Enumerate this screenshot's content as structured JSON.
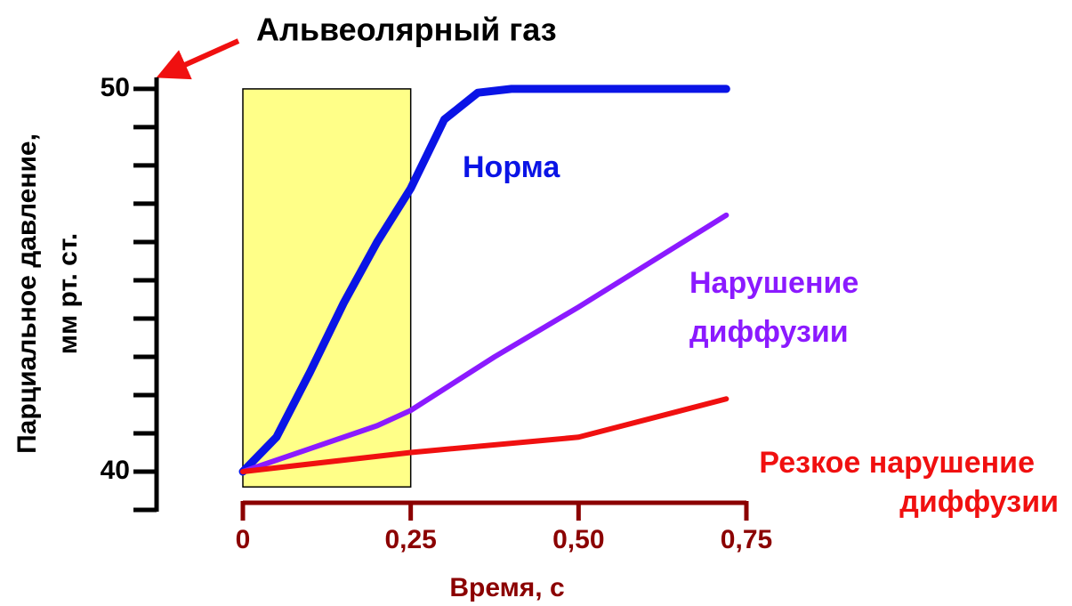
{
  "chart_data": {
    "type": "line",
    "title": "Альвеолярный газ",
    "xlabel": "Время, с",
    "ylabel": [
      "Парциальное давление,",
      "мм рт. ст."
    ],
    "xlim": [
      0,
      0.75
    ],
    "ylim": [
      39,
      50.3
    ],
    "xticks": [
      0,
      {
        "value": 0.25,
        "label": "0,25"
      },
      {
        "value": 0.5,
        "label": "0,50"
      },
      {
        "value": 0.75,
        "label": "0,75"
      }
    ],
    "yticks": [
      40,
      50
    ],
    "minor_yticks": [
      39,
      41,
      42,
      43,
      44,
      45,
      46,
      47,
      48,
      49
    ],
    "shaded_region": {
      "x": [
        0,
        0.25
      ],
      "y": [
        39.6,
        50
      ],
      "color": "#ffff88"
    },
    "series": [
      {
        "name": "Норма",
        "color": "#0a14e6",
        "x": [
          0,
          0.05,
          0.1,
          0.15,
          0.2,
          0.25,
          0.3,
          0.35,
          0.4,
          0.72
        ],
        "values": [
          40,
          40.9,
          42.6,
          44.4,
          46.0,
          47.4,
          49.2,
          49.9,
          50,
          50
        ]
      },
      {
        "name": "Нарушение диффузии",
        "color": "#8b1aff",
        "x": [
          0,
          0.1,
          0.2,
          0.25,
          0.375,
          0.5,
          0.72
        ],
        "values": [
          40,
          40.6,
          41.2,
          41.6,
          43.0,
          44.3,
          46.7
        ]
      },
      {
        "name": "Резкое нарушение диффузии",
        "color": "#f01010",
        "x": [
          0,
          0.25,
          0.5,
          0.72
        ],
        "values": [
          40,
          40.5,
          40.9,
          41.9
        ]
      }
    ]
  }
}
